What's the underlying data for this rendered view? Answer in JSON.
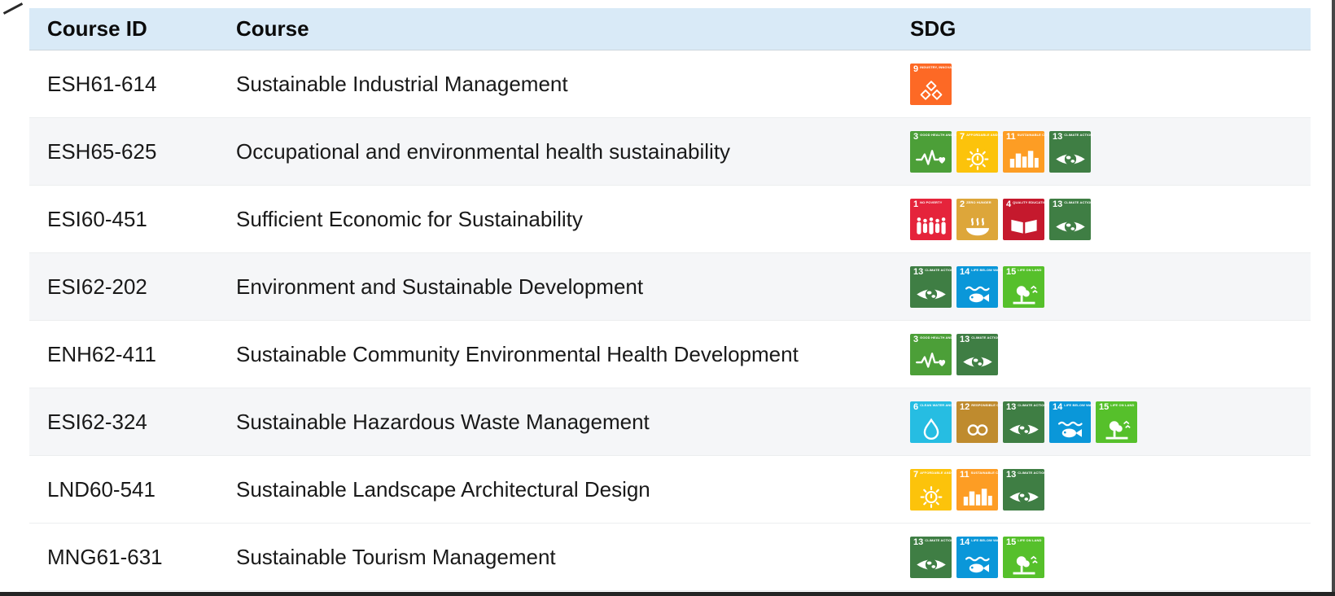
{
  "header": {
    "course_id": "Course ID",
    "course": "Course",
    "sdg": "SDG"
  },
  "rows": [
    {
      "id": "ESH61-614",
      "course": "Sustainable Industrial Management",
      "sdgs": [
        9
      ]
    },
    {
      "id": "ESH65-625",
      "course": "Occupational and environmental health sustainability",
      "sdgs": [
        3,
        7,
        11,
        13
      ]
    },
    {
      "id": "ESI60-451",
      "course": "Sufficient Economic for Sustainability",
      "sdgs": [
        1,
        2,
        4,
        13
      ]
    },
    {
      "id": "ESI62-202",
      "course": "Environment and Sustainable Development",
      "sdgs": [
        13,
        14,
        15
      ]
    },
    {
      "id": "ENH62-411",
      "course": "Sustainable Community Environmental Health Development",
      "sdgs": [
        3,
        13
      ]
    },
    {
      "id": "ESI62-324",
      "course": "Sustainable Hazardous Waste Management",
      "sdgs": [
        6,
        12,
        13,
        14,
        15
      ]
    },
    {
      "id": "LND60-541",
      "course": "Sustainable Landscape Architectural Design",
      "sdgs": [
        7,
        11,
        13
      ]
    },
    {
      "id": "MNG61-631",
      "course": "Sustainable Tourism Management",
      "sdgs": [
        13,
        14,
        15
      ]
    }
  ],
  "sdg_catalog": {
    "1": {
      "title": "NO POVERTY",
      "color": "#E5243B"
    },
    "2": {
      "title": "ZERO HUNGER",
      "color": "#DDA63A"
    },
    "3": {
      "title": "GOOD HEALTH AND WELL-BEING",
      "color": "#4C9F38"
    },
    "4": {
      "title": "QUALITY EDUCATION",
      "color": "#C5192D"
    },
    "6": {
      "title": "CLEAN WATER AND SANITATION",
      "color": "#26BDE2"
    },
    "7": {
      "title": "AFFORDABLE AND CLEAN ENERGY",
      "color": "#FCC30B"
    },
    "9": {
      "title": "INDUSTRY, INNOVATION AND INFRASTRUCTURE",
      "color": "#FD6925"
    },
    "11": {
      "title": "SUSTAINABLE CITIES AND COMMUNITIES",
      "color": "#FD9D24"
    },
    "12": {
      "title": "RESPONSIBLE CONSUMPTION AND PRODUCTION",
      "color": "#BF8B2E"
    },
    "13": {
      "title": "CLIMATE ACTION",
      "color": "#3F7E44"
    },
    "14": {
      "title": "LIFE BELOW WATER",
      "color": "#0A97D9"
    },
    "15": {
      "title": "LIFE ON LAND",
      "color": "#56C02B"
    }
  },
  "style": {
    "header_bg": "#d9eaf7",
    "stripe_bg": "#f5f6f8"
  }
}
